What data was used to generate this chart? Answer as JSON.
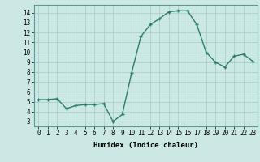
{
  "x": [
    0,
    1,
    2,
    3,
    4,
    5,
    6,
    7,
    8,
    9,
    10,
    11,
    12,
    13,
    14,
    15,
    16,
    17,
    18,
    19,
    20,
    21,
    22,
    23
  ],
  "y": [
    5.2,
    5.2,
    5.3,
    4.3,
    4.6,
    4.7,
    4.7,
    4.8,
    3.0,
    3.7,
    7.9,
    11.6,
    12.8,
    13.4,
    14.1,
    14.2,
    14.2,
    12.8,
    10.0,
    9.0,
    8.5,
    9.6,
    9.8,
    9.1
  ],
  "xlabel": "Humidex (Indice chaleur)",
  "xlim": [
    -0.5,
    23.5
  ],
  "ylim": [
    2.5,
    14.8
  ],
  "yticks": [
    3,
    4,
    5,
    6,
    7,
    8,
    9,
    10,
    11,
    12,
    13,
    14
  ],
  "xticks": [
    0,
    1,
    2,
    3,
    4,
    5,
    6,
    7,
    8,
    9,
    10,
    11,
    12,
    13,
    14,
    15,
    16,
    17,
    18,
    19,
    20,
    21,
    22,
    23
  ],
  "line_color": "#2d7d6e",
  "marker_color": "#2d7d6e",
  "bg_color": "#cce8e4",
  "grid_color": "#a8ccc8",
  "tick_fontsize": 5.5,
  "label_fontsize": 6.5
}
